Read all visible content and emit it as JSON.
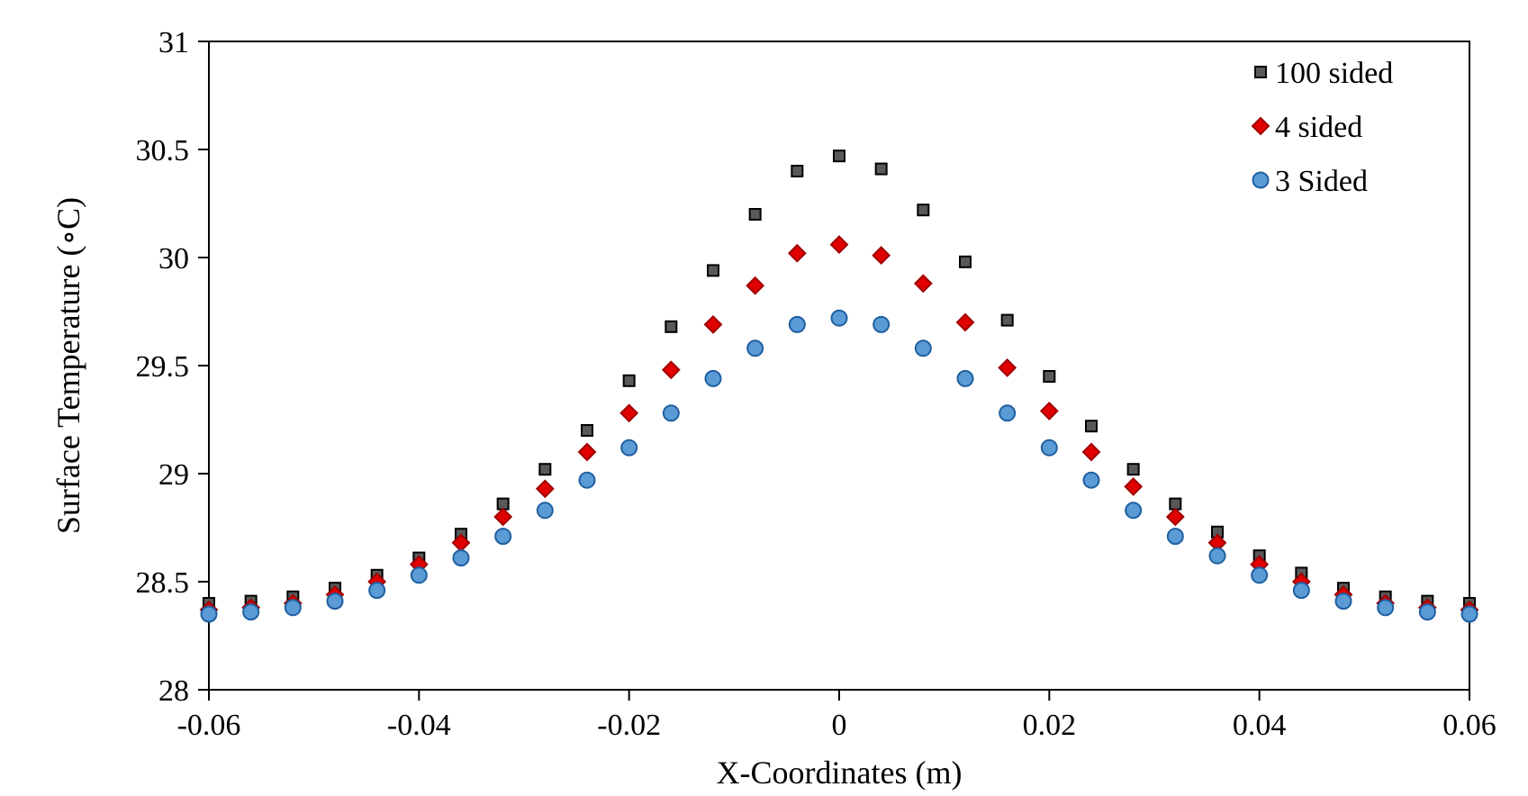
{
  "chart_data": {
    "type": "scatter",
    "title": "",
    "xlabel": "X-Coordinates (m)",
    "ylabel": "Surface Temperature (∘C)",
    "xlim": [
      -0.06,
      0.06
    ],
    "ylim": [
      28,
      31
    ],
    "xticks": [
      -0.06,
      -0.04,
      -0.02,
      0,
      0.02,
      0.04,
      0.06
    ],
    "xtick_labels": [
      "-0.06",
      "-0.04",
      "-0.02",
      "0",
      "0.02",
      "0.04",
      "0.06"
    ],
    "yticks": [
      28,
      28.5,
      29,
      29.5,
      30,
      30.5,
      31
    ],
    "ytick_labels": [
      "28",
      "28.5",
      "29",
      "29.5",
      "30",
      "30.5",
      "31"
    ],
    "grid": false,
    "legend_position": "top-right",
    "x": [
      -0.06,
      -0.056,
      -0.052,
      -0.048,
      -0.044,
      -0.04,
      -0.036,
      -0.032,
      -0.028,
      -0.024,
      -0.02,
      -0.016,
      -0.012,
      -0.008,
      -0.004,
      0,
      0.004,
      0.008,
      0.012,
      0.016,
      0.02,
      0.024,
      0.028,
      0.032,
      0.036,
      0.04,
      0.044,
      0.048,
      0.052,
      0.056,
      0.06
    ],
    "series": [
      {
        "name": "100 sided",
        "marker": "square",
        "color": "#595959",
        "edge_color": "#000000",
        "values": [
          28.4,
          28.41,
          28.43,
          28.47,
          28.53,
          28.61,
          28.72,
          28.86,
          29.02,
          29.2,
          29.43,
          29.68,
          29.94,
          30.2,
          30.4,
          30.47,
          30.41,
          30.22,
          29.98,
          29.71,
          29.45,
          29.22,
          29.02,
          28.86,
          28.73,
          28.62,
          28.54,
          28.47,
          28.43,
          28.41,
          28.4
        ]
      },
      {
        "name": "4 sided",
        "marker": "diamond",
        "color": "#e00000",
        "edge_color": "#a00000",
        "values": [
          28.37,
          28.38,
          28.4,
          28.44,
          28.5,
          28.58,
          28.68,
          28.8,
          28.93,
          29.1,
          29.28,
          29.48,
          29.69,
          29.87,
          30.02,
          30.06,
          30.01,
          29.88,
          29.7,
          29.49,
          29.29,
          29.1,
          28.94,
          28.8,
          28.68,
          28.58,
          28.5,
          28.44,
          28.4,
          28.38,
          28.37
        ]
      },
      {
        "name": "3 Sided",
        "marker": "circle",
        "color": "#5b9bd5",
        "edge_color": "#1f5fa0",
        "values": [
          28.35,
          28.36,
          28.38,
          28.41,
          28.46,
          28.53,
          28.61,
          28.71,
          28.83,
          28.97,
          29.12,
          29.28,
          29.44,
          29.58,
          29.69,
          29.72,
          29.69,
          29.58,
          29.44,
          29.28,
          29.12,
          28.97,
          28.83,
          28.71,
          28.62,
          28.53,
          28.46,
          28.41,
          28.38,
          28.36,
          28.35
        ]
      }
    ]
  }
}
